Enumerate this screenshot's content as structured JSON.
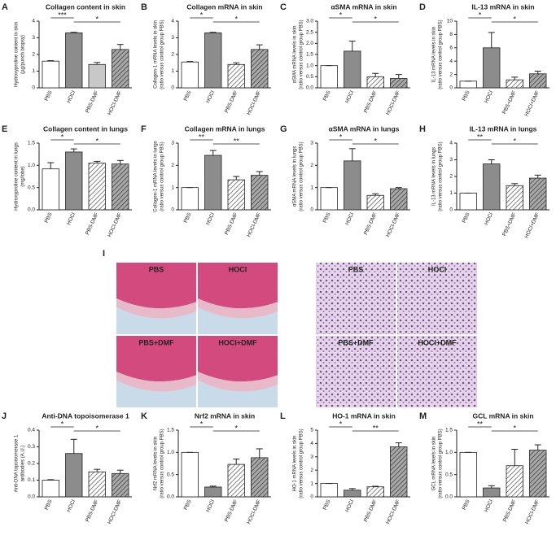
{
  "chart_data": [
    {
      "type": "bar",
      "label": "A",
      "title": "Collagen content in skin",
      "ylabel": [
        "Hydroxyproline content in skin",
        "(µg/punch biopsy)"
      ],
      "categories": [
        "PBS",
        "HOCl",
        "PBS-DMF",
        "HOCl-DMF"
      ],
      "values": [
        1.6,
        3.3,
        1.4,
        2.3
      ],
      "errors": [
        0.03,
        0.03,
        0.12,
        0.3
      ],
      "colors": [
        "#ffffff",
        "#8c8c8c",
        "#c8c8c8",
        "#8c8c8c"
      ],
      "hatch": [
        false,
        false,
        false,
        true
      ],
      "ylim": [
        0,
        4
      ],
      "yticks": [
        0,
        1,
        2,
        3,
        4
      ],
      "annotations": [
        {
          "text": "***",
          "from": 0,
          "to": 1
        },
        {
          "text": "*",
          "from": 1,
          "to": 3
        }
      ]
    },
    {
      "type": "bar",
      "label": "B",
      "title": "Collagen mRNA in skin",
      "ylabel": [
        "Collagen-1 mRNA levels in skin",
        "(ratio versus control group PBS)"
      ],
      "categories": [
        "PBS",
        "HOCl",
        "PBS-DMF",
        "HOCl-DMF"
      ],
      "values": [
        1.55,
        3.3,
        1.4,
        2.3
      ],
      "errors": [
        0.03,
        0.03,
        0.1,
        0.28
      ],
      "colors": [
        "#ffffff",
        "#8c8c8c",
        "#ffffff",
        "#8c8c8c"
      ],
      "hatch": [
        false,
        false,
        true,
        true
      ],
      "ylim": [
        0,
        4
      ],
      "yticks": [
        0,
        1,
        2,
        3,
        4
      ],
      "annotations": [
        {
          "text": "*",
          "from": 0,
          "to": 1
        },
        {
          "text": "*",
          "from": 1,
          "to": 3
        }
      ]
    },
    {
      "type": "bar",
      "label": "C",
      "title": "αSMA mRNA in skin",
      "ylabel": [
        "αSMA mRNA levels in skin",
        "(ratio versus control group PBS)"
      ],
      "categories": [
        "PBS",
        "HOCl",
        "PBS-DMF",
        "HOCl-DMF"
      ],
      "values": [
        1.0,
        1.65,
        0.5,
        0.42
      ],
      "errors": [
        0,
        0.45,
        0.15,
        0.18
      ],
      "colors": [
        "#ffffff",
        "#8c8c8c",
        "#ffffff",
        "#8c8c8c"
      ],
      "hatch": [
        false,
        false,
        true,
        true
      ],
      "ylim": [
        0,
        3
      ],
      "yticks": [
        {
          "value": 0,
          "label": "0.0"
        },
        0.5,
        {
          "value": 1,
          "label": "1.0"
        },
        1.5,
        {
          "value": 2,
          "label": "2.0"
        },
        2.5,
        {
          "value": 3,
          "label": "3.0"
        }
      ],
      "annotations": [
        {
          "text": "*",
          "from": 0,
          "to": 1
        },
        {
          "text": "*",
          "from": 1,
          "to": 3
        }
      ]
    },
    {
      "type": "bar",
      "label": "D",
      "title": "IL-13 mRNA in skin",
      "ylabel": [
        "IL-13 mRNA levels in skin",
        "(ratio versus control group PBS)"
      ],
      "categories": [
        "PBS",
        "HOCl",
        "PBS+DMF",
        "HOCl+DMF"
      ],
      "values": [
        1.0,
        6.0,
        1.2,
        2.1
      ],
      "errors": [
        0,
        2.3,
        0.4,
        0.4
      ],
      "colors": [
        "#ffffff",
        "#8c8c8c",
        "#ffffff",
        "#8c8c8c"
      ],
      "hatch": [
        false,
        false,
        true,
        true
      ],
      "ylim": [
        0,
        10
      ],
      "yticks": [
        0,
        2,
        4,
        6,
        8,
        10
      ],
      "annotations": [
        {
          "text": "*",
          "from": 0,
          "to": 1
        },
        {
          "text": "*",
          "from": 1,
          "to": 3
        }
      ]
    },
    {
      "type": "bar",
      "label": "E",
      "title": "Collagen content in lungs",
      "ylabel": [
        "Hydroxyproline content in lungs",
        "(mg/lobe)"
      ],
      "categories": [
        "PBS",
        "HOCl",
        "PBS-DMF",
        "HOCl-DMF"
      ],
      "values": [
        0.92,
        1.3,
        1.05,
        1.03
      ],
      "errors": [
        0.14,
        0.07,
        0.04,
        0.08
      ],
      "colors": [
        "#ffffff",
        "#8c8c8c",
        "#ffffff",
        "#8c8c8c"
      ],
      "hatch": [
        false,
        false,
        true,
        true
      ],
      "ylim": [
        0,
        1.5
      ],
      "yticks": [
        {
          "value": 0,
          "label": "0.0"
        },
        0.5,
        {
          "value": 1,
          "label": "1.0"
        },
        1.5
      ],
      "annotations": [
        {
          "text": "*",
          "from": 0,
          "to": 1
        },
        {
          "text": "*",
          "from": 1,
          "to": 3
        }
      ]
    },
    {
      "type": "bar",
      "label": "F",
      "title": "Collagen mRNA in lungs",
      "ylabel": [
        "Collagen-1 mRNA levels in lungs",
        "(ratio versus control group PBS)"
      ],
      "categories": [
        "PBS",
        "HOCl",
        "PBS-DMF",
        "HOCl-DMF"
      ],
      "values": [
        1.0,
        2.45,
        1.35,
        1.55
      ],
      "errors": [
        0,
        0.22,
        0.15,
        0.17
      ],
      "colors": [
        "#ffffff",
        "#8c8c8c",
        "#ffffff",
        "#8c8c8c"
      ],
      "hatch": [
        false,
        false,
        true,
        true
      ],
      "ylim": [
        0,
        3
      ],
      "yticks": [
        0,
        1,
        2,
        3
      ],
      "annotations": [
        {
          "text": "**",
          "from": 0,
          "to": 1
        },
        {
          "text": "**",
          "from": 1,
          "to": 3
        }
      ]
    },
    {
      "type": "bar",
      "label": "G",
      "title": "αSMA mRNA in lungs",
      "ylabel": [
        "αSMA mRNA levels in lungs",
        "(ratio versus control group PBS)"
      ],
      "categories": [
        "PBS",
        "HOCl",
        "PBS-DMF",
        "HOCl-DMF"
      ],
      "values": [
        1.0,
        2.2,
        0.65,
        0.95
      ],
      "errors": [
        0,
        0.55,
        0.07,
        0.05
      ],
      "colors": [
        "#ffffff",
        "#8c8c8c",
        "#ffffff",
        "#8c8c8c"
      ],
      "hatch": [
        false,
        false,
        true,
        true
      ],
      "ylim": [
        0,
        3
      ],
      "yticks": [
        0,
        1,
        2,
        3
      ],
      "annotations": [
        {
          "text": "*",
          "from": 0,
          "to": 1
        },
        {
          "text": "*",
          "from": 1,
          "to": 3
        }
      ]
    },
    {
      "type": "bar",
      "label": "H",
      "title": "IL-13 mRNA in lungs",
      "ylabel": [
        "IL-13 mRNA levels in lungs",
        "(ratio versus control group PBS)"
      ],
      "categories": [
        "PBS",
        "HOCl",
        "PBS+DMF",
        "HOCl+DMF"
      ],
      "values": [
        1.0,
        2.75,
        1.45,
        1.9
      ],
      "errors": [
        0,
        0.25,
        0.12,
        0.18
      ],
      "colors": [
        "#ffffff",
        "#8c8c8c",
        "#ffffff",
        "#8c8c8c"
      ],
      "hatch": [
        false,
        false,
        true,
        true
      ],
      "ylim": [
        0,
        4
      ],
      "yticks": [
        0,
        1,
        2,
        3,
        4
      ],
      "annotations": [
        {
          "text": "**",
          "from": 0,
          "to": 1
        },
        {
          "text": "*",
          "from": 1,
          "to": 3
        }
      ]
    },
    {
      "type": "bar",
      "label": "J",
      "title": "Anti-DNA topoisomerase 1",
      "ylabel": [
        "Anti-DNA topoisomerase 1",
        "antibodies (A.U.)"
      ],
      "categories": [
        "PBS",
        "HOCl",
        "PBS-DMF",
        "HOCl-DMF"
      ],
      "values": [
        0.1,
        0.26,
        0.15,
        0.14
      ],
      "errors": [
        0.003,
        0.085,
        0.015,
        0.02
      ],
      "colors": [
        "#ffffff",
        "#8c8c8c",
        "#ffffff",
        "#8c8c8c"
      ],
      "hatch": [
        false,
        false,
        true,
        true
      ],
      "ylim": [
        0,
        0.4
      ],
      "yticks": [
        {
          "value": 0,
          "label": "0.0"
        },
        0.1,
        0.2,
        0.3,
        0.4
      ],
      "annotations": [
        {
          "text": "*",
          "from": 0,
          "to": 1
        },
        {
          "text": "*",
          "from": 1,
          "to": 3
        }
      ]
    },
    {
      "type": "bar",
      "label": "K",
      "title": "Nrf2 mRNA in skin",
      "ylabel": [
        "Nrf2 mRNA levels in skin",
        "(ratio versus control group PBS)"
      ],
      "categories": [
        "PBS",
        "HOCl",
        "PBS-DMF",
        "HOCl-DMF"
      ],
      "values": [
        1.0,
        0.22,
        0.73,
        0.88
      ],
      "errors": [
        0,
        0.02,
        0.12,
        0.2
      ],
      "colors": [
        "#ffffff",
        "#8c8c8c",
        "#ffffff",
        "#8c8c8c"
      ],
      "hatch": [
        false,
        false,
        true,
        true
      ],
      "ylim": [
        0,
        1.5
      ],
      "yticks": [
        {
          "value": 0,
          "label": "0.0"
        },
        0.5,
        {
          "value": 1,
          "label": "1.0"
        },
        1.5
      ],
      "annotations": [
        {
          "text": "*",
          "from": 0,
          "to": 1
        },
        {
          "text": "*",
          "from": 1,
          "to": 3
        }
      ]
    },
    {
      "type": "bar",
      "label": "L",
      "title": "HO-1 mRNA in skin",
      "ylabel": [
        "HO-1 mRNA levels in skin",
        "(ratio versus control group PBS)"
      ],
      "categories": [
        "PBS",
        "HOCl",
        "PBS-DMF",
        "HOCl-DMF"
      ],
      "values": [
        1.0,
        0.5,
        0.75,
        3.75
      ],
      "errors": [
        0,
        0.12,
        0.04,
        0.3
      ],
      "colors": [
        "#ffffff",
        "#8c8c8c",
        "#ffffff",
        "#8c8c8c"
      ],
      "hatch": [
        false,
        false,
        true,
        true
      ],
      "ylim": [
        0,
        5
      ],
      "yticks": [
        0,
        1,
        2,
        3,
        4,
        5
      ],
      "annotations": [
        {
          "text": "*",
          "from": 0,
          "to": 1
        },
        {
          "text": "**",
          "from": 1,
          "to": 3
        }
      ]
    },
    {
      "type": "bar",
      "label": "M",
      "title": "GCL mRNA in skin",
      "ylabel": [
        "GCL mRNA levels in skin",
        "(ratio versus control group PBS)"
      ],
      "categories": [
        "PBS",
        "HOCl",
        "PBS-DMF",
        "HOCl-DMF"
      ],
      "values": [
        1.0,
        0.2,
        0.7,
        1.05
      ],
      "errors": [
        0,
        0.05,
        0.37,
        0.12
      ],
      "colors": [
        "#ffffff",
        "#8c8c8c",
        "#ffffff",
        "#8c8c8c"
      ],
      "hatch": [
        false,
        false,
        true,
        true
      ],
      "ylim": [
        0,
        1.5
      ],
      "yticks": [
        {
          "value": 0,
          "label": "0.0"
        },
        0.5,
        {
          "value": 1,
          "label": "1.0"
        },
        1.5
      ],
      "annotations": [
        {
          "text": "**",
          "from": 0,
          "to": 1
        },
        {
          "text": "*",
          "from": 1,
          "to": 3
        }
      ]
    }
  ],
  "image_figure": {
    "label": "I",
    "groups": [
      {
        "tissue": "skin",
        "panels": [
          "PBS",
          "HOCl",
          "PBS+DMF",
          "HOCl+DMF"
        ]
      },
      {
        "tissue": "lungs",
        "panels": [
          "PBS",
          "HOCl",
          "PBS+DMF",
          "HOCl+DMF"
        ]
      }
    ]
  }
}
